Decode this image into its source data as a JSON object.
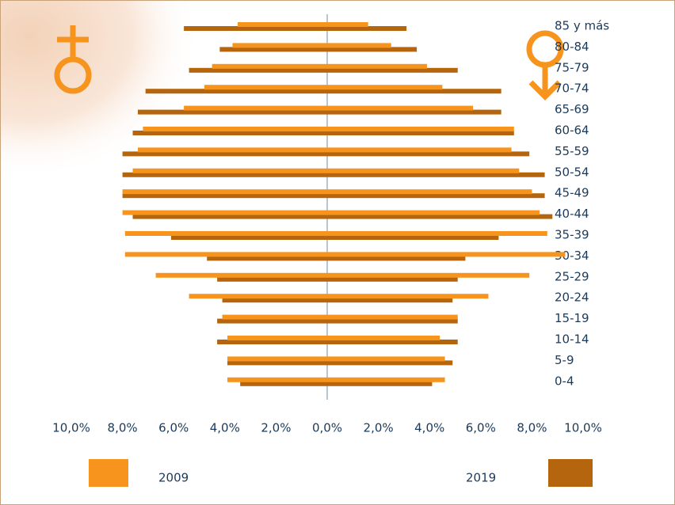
{
  "chart_data": {
    "type": "pyramid",
    "categories": [
      "85 y más",
      "80-84",
      "75-79",
      "70-74",
      "65-69",
      "60-64",
      "55-59",
      "50-54",
      "45-49",
      "40-44",
      "35-39",
      "30-34",
      "25-29",
      "20-24",
      "15-19",
      "10-14",
      "5-9",
      "0-4"
    ],
    "series": [
      {
        "name": "2009",
        "color": "#f7941d",
        "male": [
          -3.5,
          -3.7,
          -4.5,
          -4.8,
          -5.6,
          -7.2,
          -7.4,
          -7.6,
          -8.0,
          -8.0,
          -7.9,
          -7.9,
          -6.7,
          -5.4,
          -4.1,
          -3.9,
          -3.9,
          -3.9
        ],
        "female": [
          1.6,
          2.5,
          3.9,
          4.5,
          5.7,
          7.3,
          7.2,
          7.5,
          8.0,
          8.3,
          8.6,
          9.3,
          7.9,
          6.3,
          5.1,
          4.4,
          4.6,
          4.6
        ]
      },
      {
        "name": "2019",
        "color": "#b5650d",
        "male": [
          -5.6,
          -4.2,
          -5.4,
          -7.1,
          -7.4,
          -7.6,
          -8.0,
          -8.0,
          -8.0,
          -7.6,
          -6.1,
          -4.7,
          -4.3,
          -4.1,
          -4.3,
          -4.3,
          -3.9,
          -3.4
        ],
        "female": [
          3.1,
          3.5,
          5.1,
          6.8,
          6.8,
          7.3,
          7.9,
          8.5,
          8.5,
          8.8,
          6.7,
          5.4,
          5.1,
          4.9,
          5.1,
          5.1,
          4.9,
          4.1
        ]
      }
    ],
    "xlim": [
      -10,
      10
    ],
    "xticks": [
      {
        "value": -10,
        "label": "10,0%"
      },
      {
        "value": -8,
        "label": "8,0%"
      },
      {
        "value": -6,
        "label": "6,0%"
      },
      {
        "value": -4,
        "label": "4,0%"
      },
      {
        "value": -2,
        "label": "2,0%"
      },
      {
        "value": 0,
        "label": "0,0%"
      },
      {
        "value": 2,
        "label": "2,0%"
      },
      {
        "value": 4,
        "label": "4,0%"
      },
      {
        "value": 6,
        "label": "6,0%"
      },
      {
        "value": 8,
        "label": "8,0%"
      },
      {
        "value": 10,
        "label": "10,0%"
      }
    ]
  }
}
